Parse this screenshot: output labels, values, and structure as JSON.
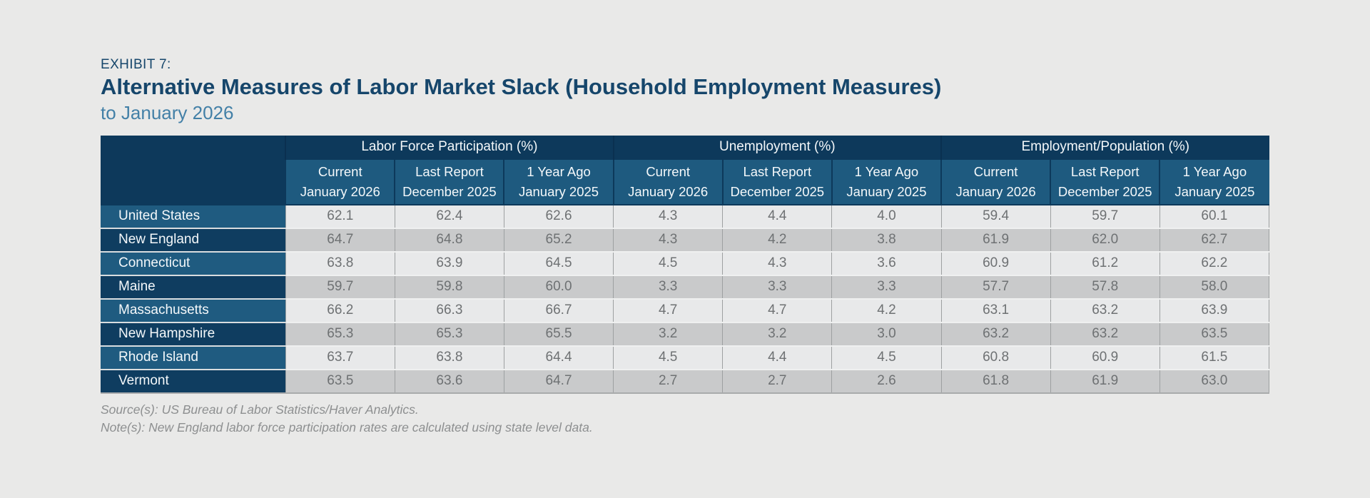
{
  "colors": {
    "page_background": "#e9e9e8",
    "title_navy": "#16466b",
    "subtitle_blue": "#4380a7",
    "header_navy": "#0d395b",
    "subheader_blue": "#1e5a7f",
    "row_label_light": "#1f5b80",
    "row_label_dark": "#0f3d60",
    "row_light": "#e8e9ea",
    "row_dark": "#c9cacb",
    "data_text": "#6e7173"
  },
  "footer": {
    "source": "Source(s): US Bureau of Labor Statistics/Haver Analytics.",
    "note": "Note(s): New England labor force participation rates are calculated using state level data."
  },
  "chart_data": {
    "type": "table",
    "exhibit_label": "EXHIBIT 7:",
    "title": "Alternative Measures of Labor Market Slack (Household Employment Measures)",
    "subtitle": "to January 2026",
    "column_groups": [
      "Labor Force Participation (%)",
      "Unemployment (%)",
      "Employment/Population (%)"
    ],
    "sub_columns": [
      {
        "line1": "Current",
        "line2": "January 2026"
      },
      {
        "line1": "Last Report",
        "line2": "December 2025"
      },
      {
        "line1": "1 Year Ago",
        "line2": "January 2025"
      }
    ],
    "rows": [
      {
        "label": "United States",
        "labor_force_participation": [
          62.1,
          62.4,
          62.6
        ],
        "unemployment": [
          4.3,
          4.4,
          4.0
        ],
        "employment_population": [
          59.4,
          59.7,
          60.1
        ]
      },
      {
        "label": "New England",
        "labor_force_participation": [
          64.7,
          64.8,
          65.2
        ],
        "unemployment": [
          4.3,
          4.2,
          3.8
        ],
        "employment_population": [
          61.9,
          62.0,
          62.7
        ]
      },
      {
        "label": "Connecticut",
        "labor_force_participation": [
          63.8,
          63.9,
          64.5
        ],
        "unemployment": [
          4.5,
          4.3,
          3.6
        ],
        "employment_population": [
          60.9,
          61.2,
          62.2
        ]
      },
      {
        "label": "Maine",
        "labor_force_participation": [
          59.7,
          59.8,
          60.0
        ],
        "unemployment": [
          3.3,
          3.3,
          3.3
        ],
        "employment_population": [
          57.7,
          57.8,
          58.0
        ]
      },
      {
        "label": "Massachusetts",
        "labor_force_participation": [
          66.2,
          66.3,
          66.7
        ],
        "unemployment": [
          4.7,
          4.7,
          4.2
        ],
        "employment_population": [
          63.1,
          63.2,
          63.9
        ]
      },
      {
        "label": "New Hampshire",
        "labor_force_participation": [
          65.3,
          65.3,
          65.5
        ],
        "unemployment": [
          3.2,
          3.2,
          3.0
        ],
        "employment_population": [
          63.2,
          63.2,
          63.5
        ]
      },
      {
        "label": "Rhode Island",
        "labor_force_participation": [
          63.7,
          63.8,
          64.4
        ],
        "unemployment": [
          4.5,
          4.4,
          4.5
        ],
        "employment_population": [
          60.8,
          60.9,
          61.5
        ]
      },
      {
        "label": "Vermont",
        "labor_force_participation": [
          63.5,
          63.6,
          64.7
        ],
        "unemployment": [
          2.7,
          2.7,
          2.6
        ],
        "employment_population": [
          61.8,
          61.9,
          63.0
        ]
      }
    ]
  }
}
